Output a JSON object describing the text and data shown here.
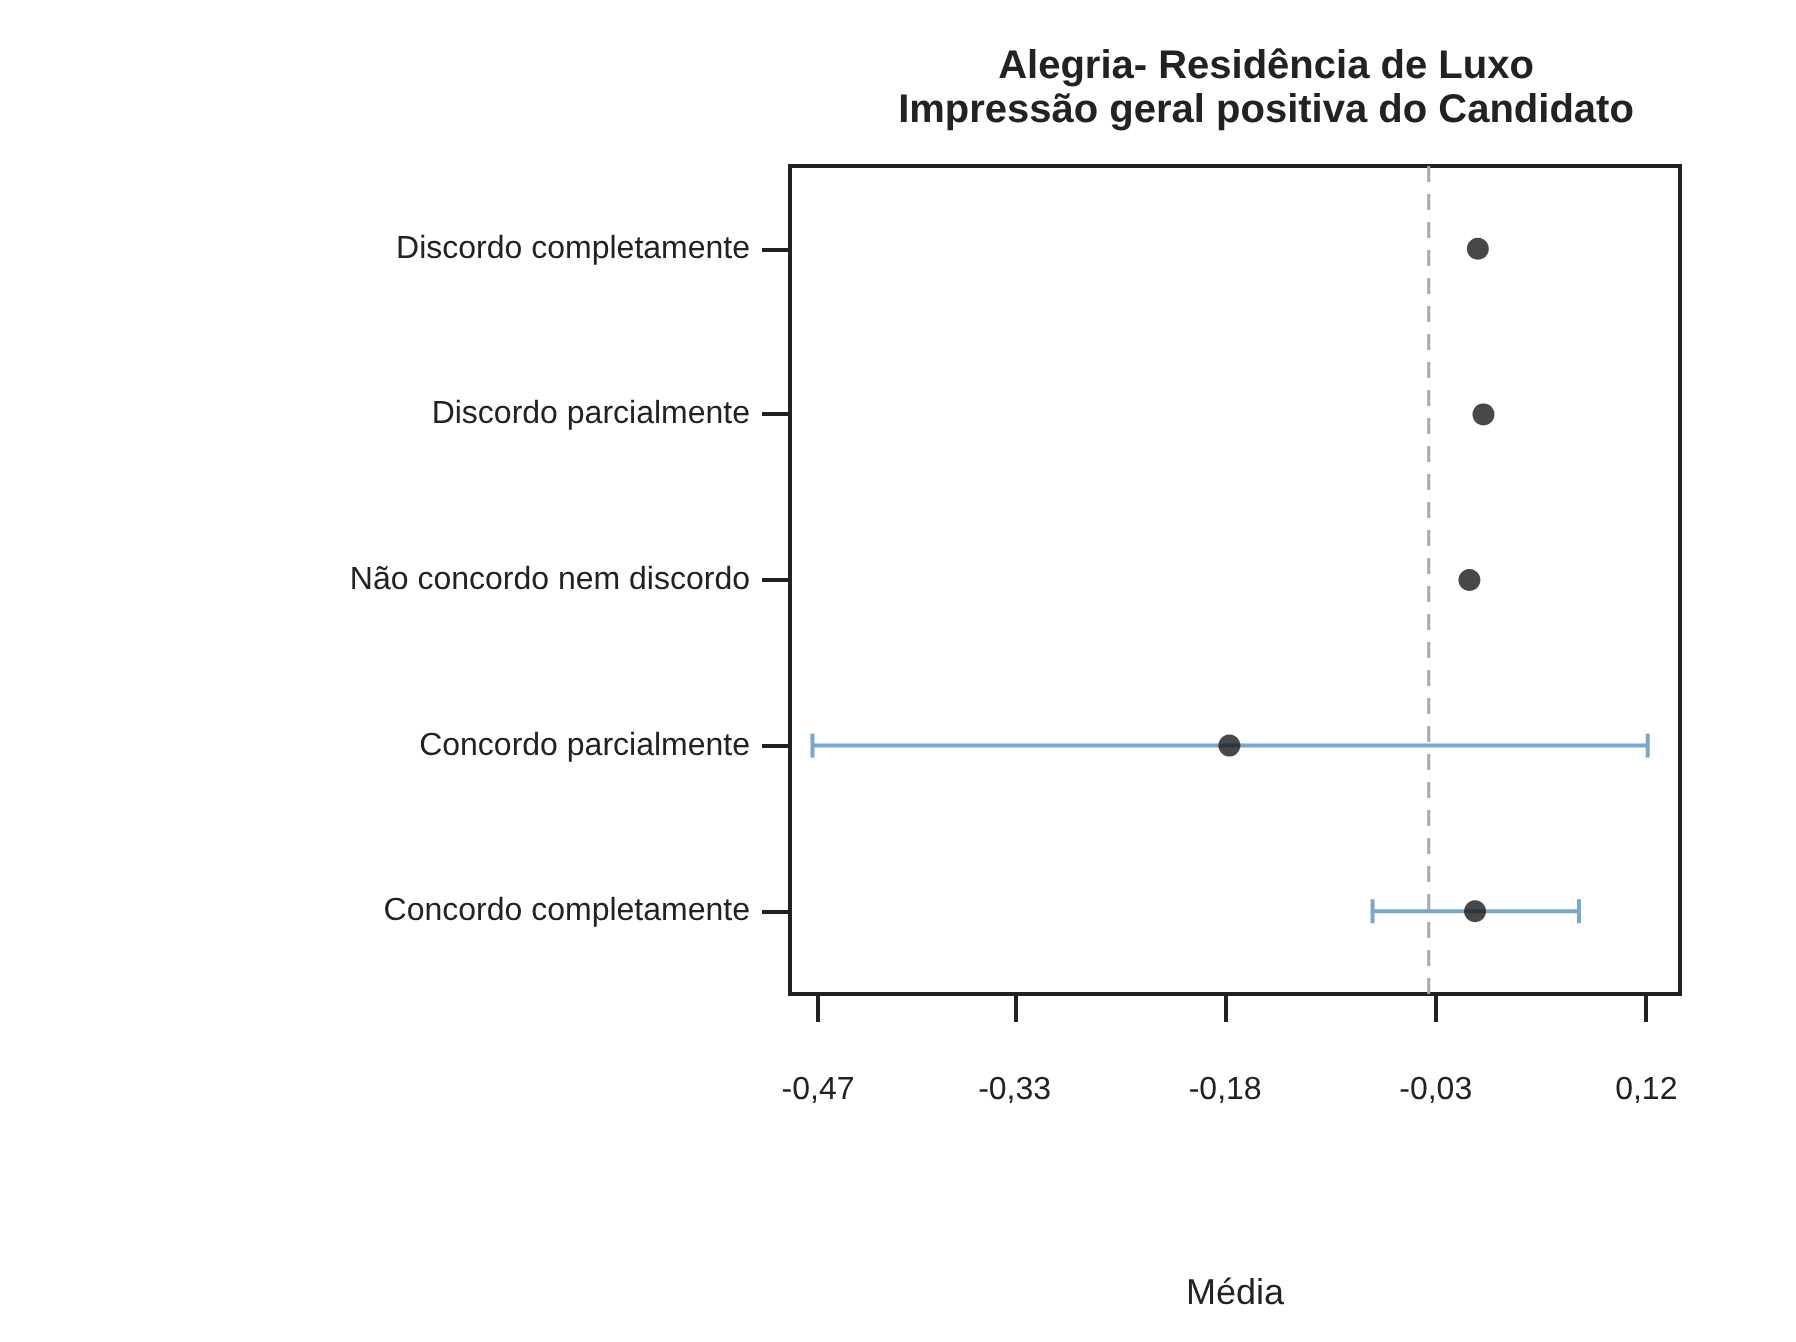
{
  "chart_data": {
    "type": "scatter",
    "title": "Alegria- Residência de Luxo",
    "subtitle": "Impressão geral positiva do Candidato",
    "xlabel": "Média",
    "orientation": "horizontal",
    "categories": [
      "Discordo completamente",
      "Discordo parcialmente",
      "Não concordo nem discordo",
      "Concordo parcialmente",
      "Concordo completamente"
    ],
    "series": [
      {
        "color": "#1a1a1a",
        "values": [
          0.0,
          0.004,
          -0.006,
          -0.177,
          -0.002
        ],
        "errors": [
          null,
          null,
          null,
          [
            -0.474,
            0.121
          ],
          [
            -0.075,
            0.072
          ]
        ]
      }
    ],
    "xlim": [
      -0.49,
      0.144
    ],
    "xticks": [
      {
        "value": -0.47,
        "label": "-0,47"
      },
      {
        "value": -0.33,
        "label": "-0,33"
      },
      {
        "value": -0.18,
        "label": "-0,18"
      },
      {
        "value": -0.03,
        "label": "-0,03"
      },
      {
        "value": 0.12,
        "label": "0,12"
      }
    ],
    "ref_lines": [
      {
        "axis": "x",
        "value": -0.035,
        "color": "#aaaaaa",
        "line_style": "dashed"
      }
    ],
    "marker": "circle",
    "grid": false
  }
}
